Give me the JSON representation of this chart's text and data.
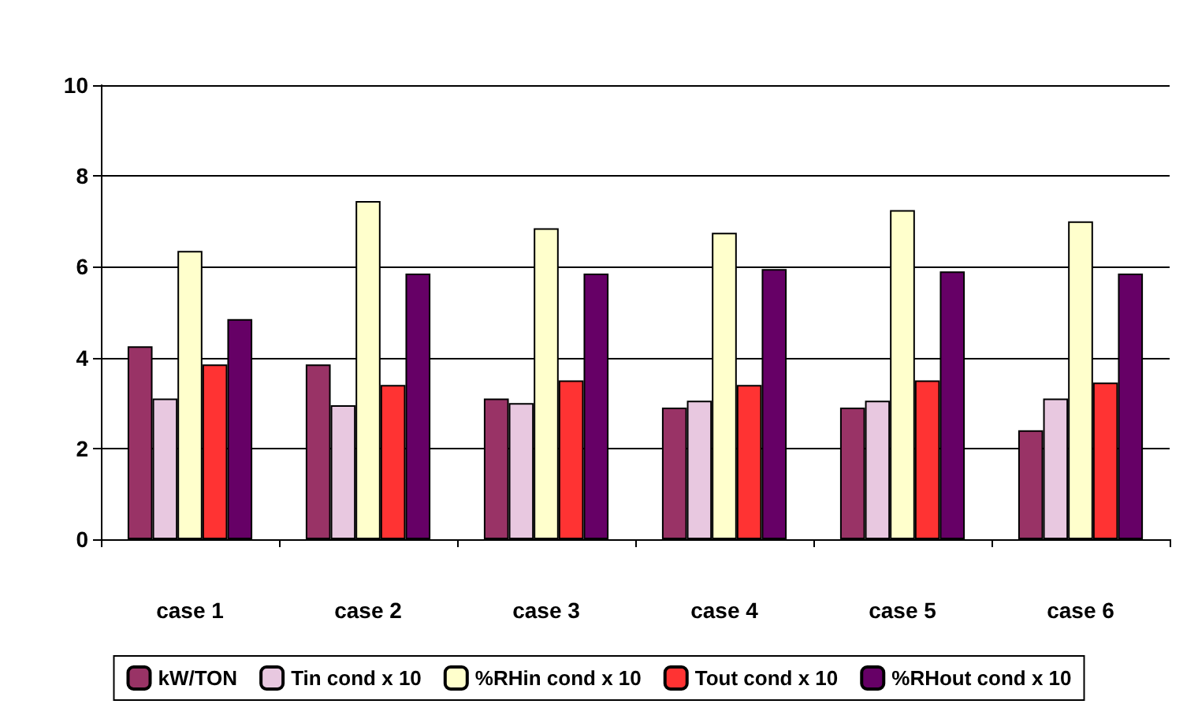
{
  "chart_data": {
    "type": "bar",
    "categories": [
      "case 1",
      "case 2",
      "case 3",
      "case 4",
      "case 5",
      "case 6"
    ],
    "series": [
      {
        "name": "kW/TON",
        "color": "#993366",
        "values": [
          4.25,
          3.85,
          3.1,
          2.9,
          2.9,
          2.4
        ]
      },
      {
        "name": "Tin cond x 10",
        "color": "#e8c8e0",
        "values": [
          3.1,
          2.95,
          3.0,
          3.05,
          3.05,
          3.1
        ]
      },
      {
        "name": "%RHin cond x 10",
        "color": "#ffffcc",
        "values": [
          6.35,
          7.45,
          6.85,
          6.75,
          7.25,
          7.0
        ]
      },
      {
        "name": "Tout cond x 10",
        "color": "#ff3333",
        "values": [
          3.85,
          3.4,
          3.5,
          3.4,
          3.5,
          3.45
        ]
      },
      {
        "name": "%RHout cond x 10",
        "color": "#660066",
        "values": [
          4.85,
          5.85,
          5.85,
          5.95,
          5.9,
          5.85
        ]
      }
    ],
    "ylim": [
      0,
      10
    ],
    "yticks": [
      0,
      2,
      4,
      6,
      8,
      10
    ],
    "grid": "y",
    "legend": "bottom"
  }
}
